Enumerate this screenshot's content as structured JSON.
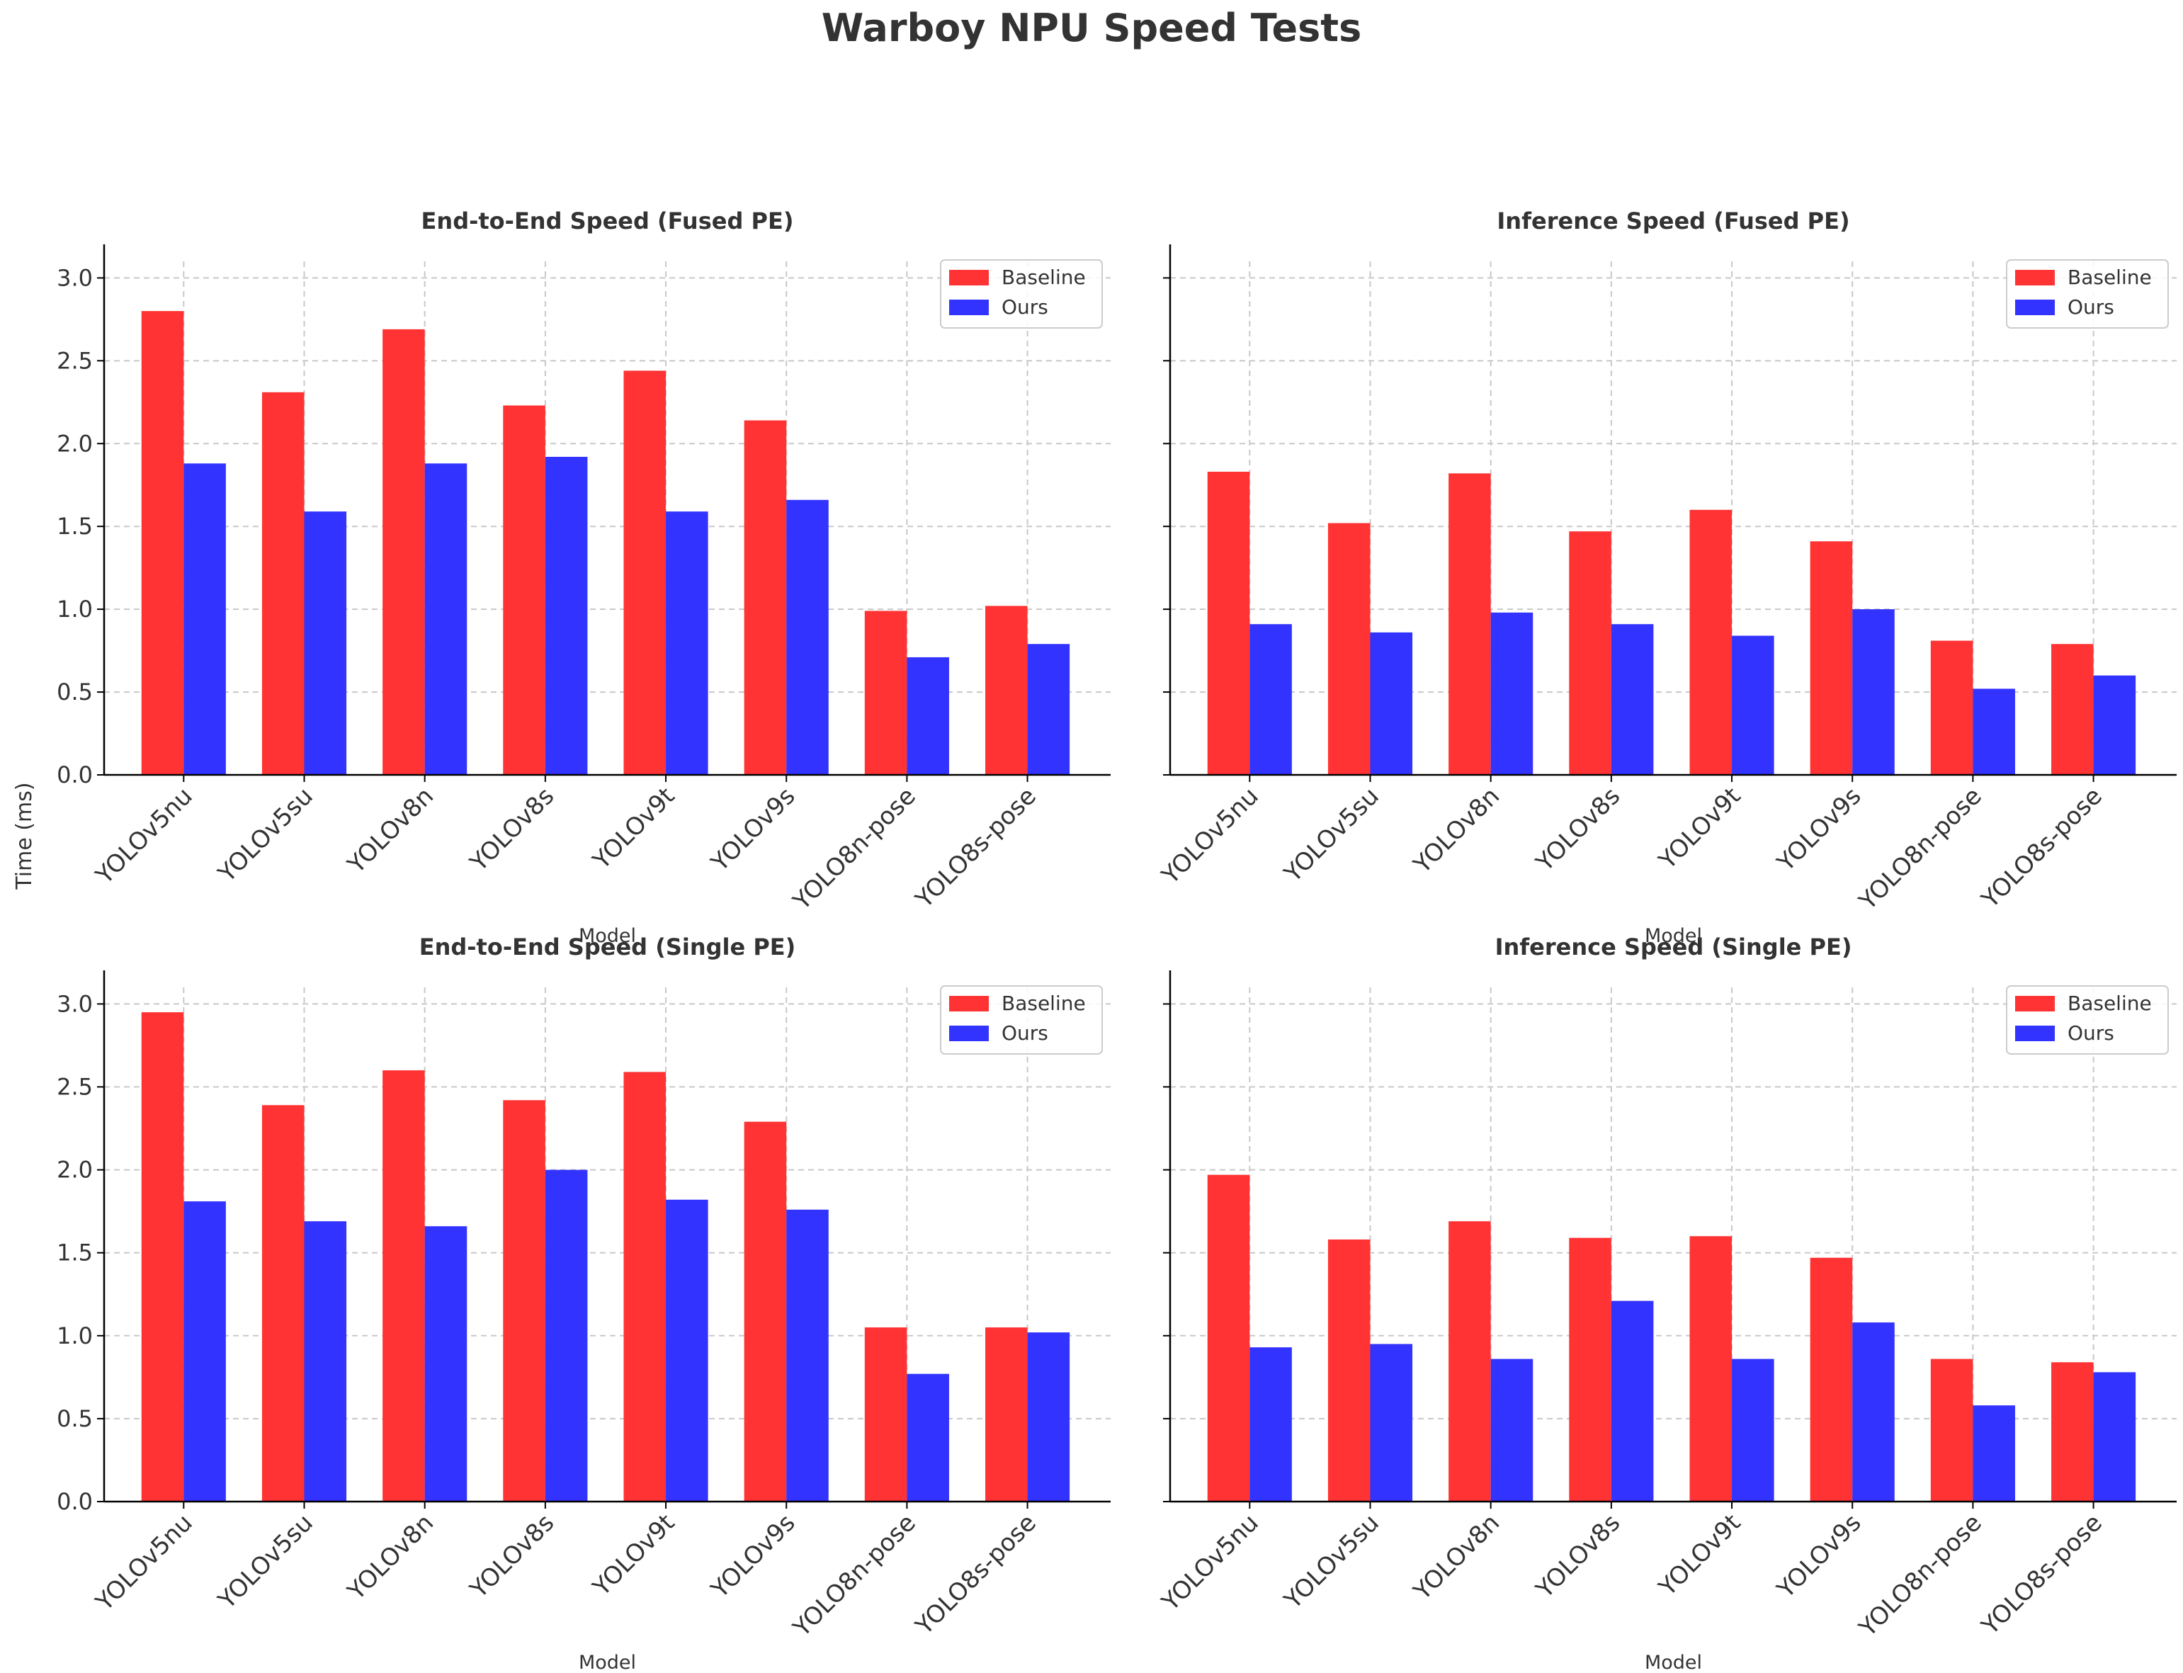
{
  "figure": {
    "title": "Warboy NPU Speed Tests",
    "shared_ylabel": "Time (ms)"
  },
  "colors": {
    "baseline": "#ff3333",
    "ours": "#3333ff",
    "title": "#333333",
    "axis": "#000000",
    "grid": "#c8c8c8"
  },
  "chart_data": [
    {
      "type": "bar",
      "title": "End-to-End Speed (Fused PE)",
      "xlabel": "Model",
      "ylabel": "Time (ms)",
      "ylim": [
        0,
        3.1
      ],
      "yticks": [
        0.0,
        0.5,
        1.0,
        1.5,
        2.0,
        2.5,
        3.0
      ],
      "ytick_labels": [
        "0.0",
        "0.5",
        "1.0",
        "1.5",
        "2.0",
        "2.5",
        "3.0"
      ],
      "grid": true,
      "legend_position": "top-right",
      "categories": [
        "YOLOv5nu",
        "YOLOv5su",
        "YOLOv8n",
        "YOLOv8s",
        "YOLOv9t",
        "YOLOv9s",
        "YOLO8n-pose",
        "YOLO8s-pose"
      ],
      "series": [
        {
          "name": "Baseline",
          "color": "#ff3333",
          "values": [
            2.8,
            2.31,
            2.69,
            2.23,
            2.44,
            2.14,
            0.99,
            1.02
          ]
        },
        {
          "name": "Ours",
          "color": "#3333ff",
          "values": [
            1.88,
            1.59,
            1.88,
            1.92,
            1.59,
            1.66,
            0.71,
            0.79
          ]
        }
      ]
    },
    {
      "type": "bar",
      "title": "Inference Speed (Fused PE)",
      "xlabel": "Model",
      "ylim": [
        0,
        3.1
      ],
      "yticks": [
        0.0,
        0.5,
        1.0,
        1.5,
        2.0,
        2.5,
        3.0
      ],
      "ytick_labels": [],
      "grid": true,
      "legend_position": "top-right",
      "categories": [
        "YOLOv5nu",
        "YOLOv5su",
        "YOLOv8n",
        "YOLOv8s",
        "YOLOv9t",
        "YOLOv9s",
        "YOLO8n-pose",
        "YOLO8s-pose"
      ],
      "series": [
        {
          "name": "Baseline",
          "color": "#ff3333",
          "values": [
            1.83,
            1.52,
            1.82,
            1.47,
            1.6,
            1.41,
            0.81,
            0.79
          ]
        },
        {
          "name": "Ours",
          "color": "#3333ff",
          "values": [
            0.91,
            0.86,
            0.98,
            0.91,
            0.84,
            1.0,
            0.52,
            0.6
          ]
        }
      ]
    },
    {
      "type": "bar",
      "title": "End-to-End Speed (Single PE)",
      "xlabel": "Model",
      "ylim": [
        0,
        3.1
      ],
      "yticks": [
        0.0,
        0.5,
        1.0,
        1.5,
        2.0,
        2.5,
        3.0
      ],
      "ytick_labels": [
        "0.0",
        "0.5",
        "1.0",
        "1.5",
        "2.0",
        "2.5",
        "3.0"
      ],
      "grid": true,
      "legend_position": "top-right",
      "categories": [
        "YOLOv5nu",
        "YOLOv5su",
        "YOLOv8n",
        "YOLOv8s",
        "YOLOv9t",
        "YOLOv9s",
        "YOLO8n-pose",
        "YOLO8s-pose"
      ],
      "series": [
        {
          "name": "Baseline",
          "color": "#ff3333",
          "values": [
            2.95,
            2.39,
            2.6,
            2.42,
            2.59,
            2.29,
            1.05,
            1.05
          ]
        },
        {
          "name": "Ours",
          "color": "#3333ff",
          "values": [
            1.81,
            1.69,
            1.66,
            2.0,
            1.82,
            1.76,
            0.77,
            1.02
          ]
        }
      ]
    },
    {
      "type": "bar",
      "title": "Inference Speed (Single PE)",
      "xlabel": "Model",
      "ylim": [
        0,
        3.1
      ],
      "yticks": [
        0.0,
        0.5,
        1.0,
        1.5,
        2.0,
        2.5,
        3.0
      ],
      "ytick_labels": [],
      "grid": true,
      "legend_position": "top-right",
      "categories": [
        "YOLOv5nu",
        "YOLOv5su",
        "YOLOv8n",
        "YOLOv8s",
        "YOLOv9t",
        "YOLOv9s",
        "YOLO8n-pose",
        "YOLO8s-pose"
      ],
      "series": [
        {
          "name": "Baseline",
          "color": "#ff3333",
          "values": [
            1.97,
            1.58,
            1.69,
            1.59,
            1.6,
            1.47,
            0.86,
            0.84
          ]
        },
        {
          "name": "Ours",
          "color": "#3333ff",
          "values": [
            0.93,
            0.95,
            0.86,
            1.21,
            0.86,
            1.08,
            0.58,
            0.78
          ]
        }
      ]
    }
  ]
}
